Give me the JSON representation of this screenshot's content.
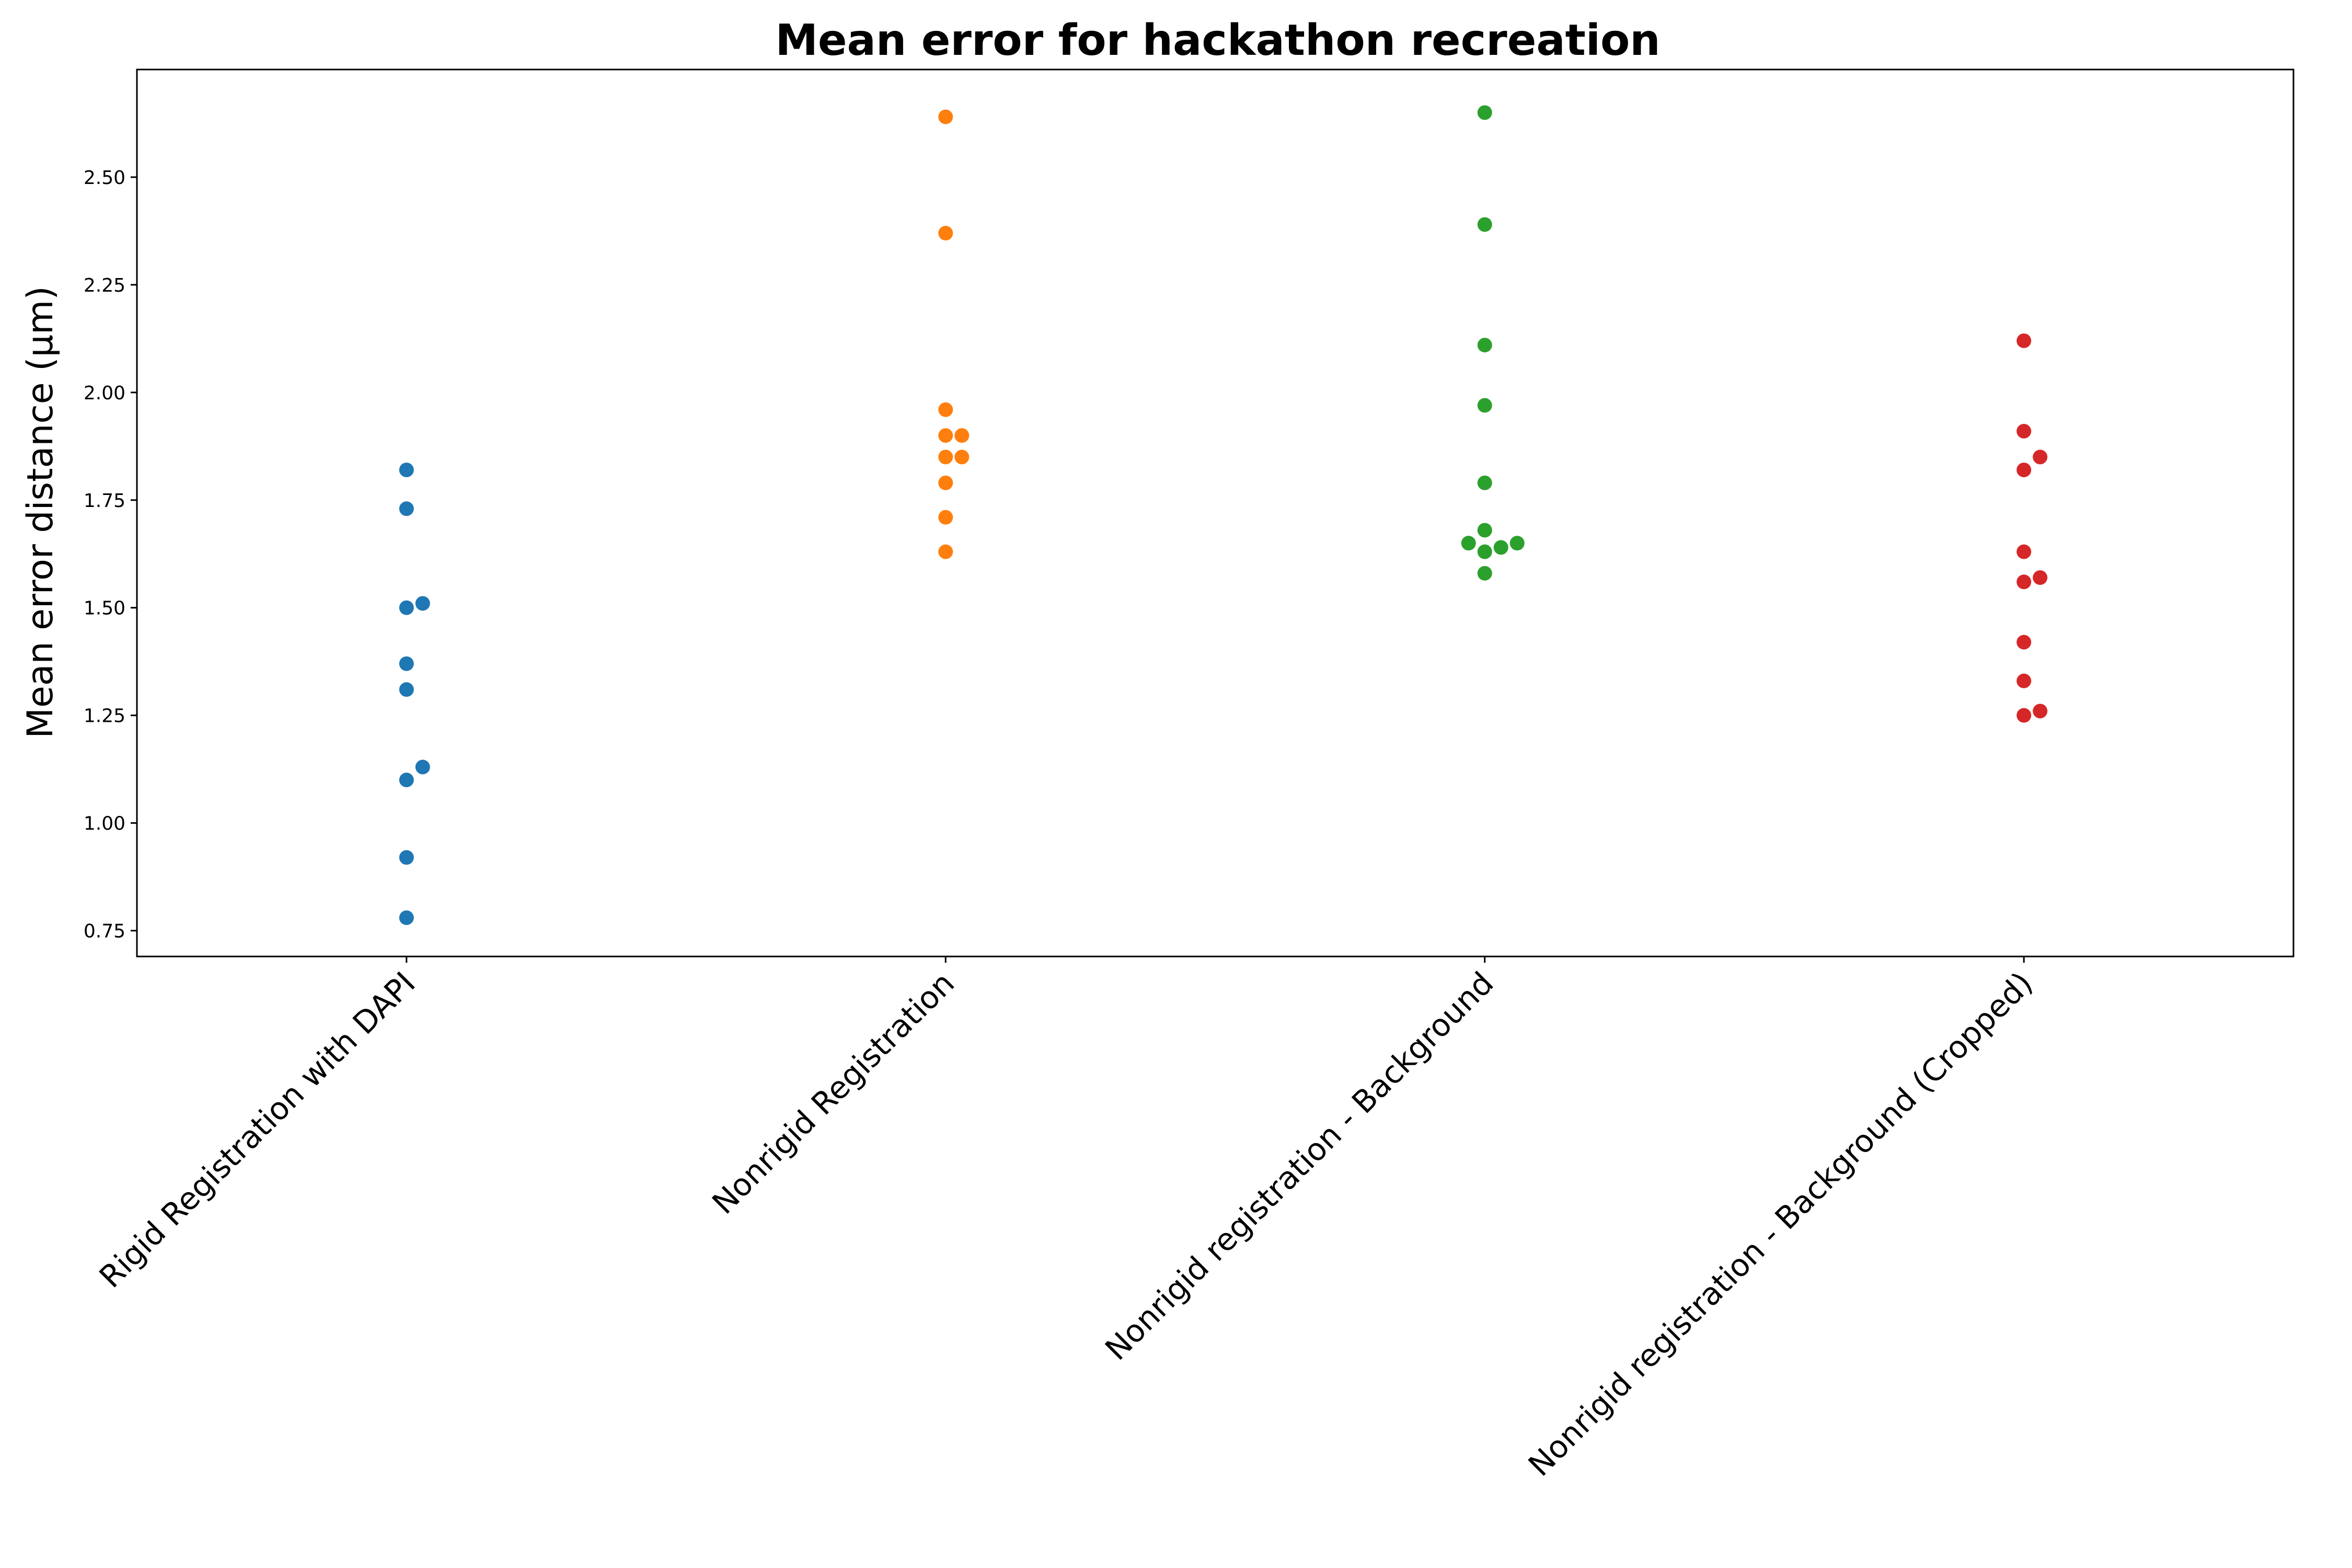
{
  "chart_data": {
    "type": "scatter",
    "subtype": "swarm",
    "title": "Mean error for hackathon recreation",
    "xlabel": "",
    "ylabel": "Mean error distance (µm)",
    "ylim": [
      0.69,
      2.75
    ],
    "yticks": [
      "0.75",
      "1.00",
      "1.25",
      "1.50",
      "1.75",
      "2.00",
      "2.25",
      "2.50"
    ],
    "grid": false,
    "categories": [
      "Rigid Registration with DAPI",
      "Nonrigid Registration",
      "Nonrigid registration - Background",
      "Nonrigid registration - Background (Cropped)"
    ],
    "series": [
      {
        "color": "#1f77b4",
        "values": [
          0.78,
          0.92,
          1.1,
          1.13,
          1.31,
          1.37,
          1.5,
          1.51,
          1.73,
          1.82
        ]
      },
      {
        "color": "#ff7f0e",
        "values": [
          1.63,
          1.71,
          1.79,
          1.85,
          1.85,
          1.9,
          1.9,
          1.96,
          2.37,
          2.64
        ]
      },
      {
        "color": "#2ca02c",
        "values": [
          1.58,
          1.63,
          1.64,
          1.65,
          1.65,
          1.68,
          1.79,
          1.97,
          2.11,
          2.39,
          2.65
        ]
      },
      {
        "color": "#d62728",
        "values": [
          1.25,
          1.26,
          1.33,
          1.42,
          1.56,
          1.57,
          1.63,
          1.82,
          1.85,
          1.91,
          2.12
        ]
      }
    ]
  }
}
